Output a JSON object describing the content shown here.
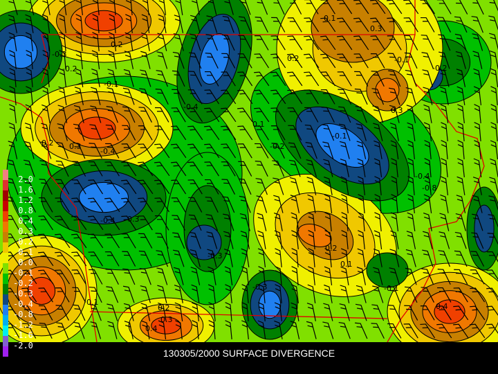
{
  "title": "130305/2000 SURFACE DIVERGENCE",
  "legend": {
    "labels": [
      "2.0",
      "1.6",
      "1.2",
      "0.8",
      "0.4",
      "0.3",
      "0.2",
      "0.1",
      "0.0",
      "-0.1",
      "-0.2",
      "-0.3",
      "-0.4",
      "-0.8",
      "-1.2",
      "-1.6",
      "-2.0"
    ],
    "colors": [
      "#f08080",
      "#e03030",
      "#a00000",
      "#c80000",
      "#f04000",
      "#f07800",
      "#c88000",
      "#f0c800",
      "#f0f000",
      "#80e000",
      "#00c000",
      "#008000",
      "#104880",
      "#2080f0",
      "#00b0f0",
      "#00f0f0",
      "#8060d0",
      "#a020f0"
    ]
  },
  "field_colors": {
    "background": "#80e000",
    "border": "#e00000",
    "barb": "#000000"
  },
  "contour_labels": [
    "0.1",
    "-0.3",
    "-0.1",
    "-0.2",
    "0.2",
    "-0.1",
    "-0.4",
    "0.3",
    "0.2",
    "0.3",
    "-0.4",
    "-0.3",
    "0.1",
    "-0.2",
    "0.1",
    "-0.2",
    "-0.4",
    "-0.8",
    "0.2",
    "0.1",
    "-0.4",
    "-0.3",
    "-0.3",
    "-0.1",
    "0.2",
    "0.4",
    "0.3",
    "-0.1",
    "0.4",
    "0.3",
    "0.2"
  ]
}
